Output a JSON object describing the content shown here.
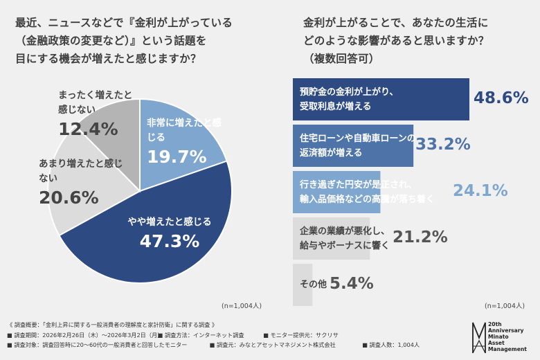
{
  "left_question": "最近、ニュースなどで『金利が上がっている\n（金融政策の変更など）』という話題を\n目にする機会が増えたと感じますか？",
  "right_question": "金利が上がることで、あなたの生活に\nどのような影響があると思いますか？\n（複数回答可）",
  "n_left": "(n=1,004人)",
  "n_right": "(n=1,004人)",
  "colors": {
    "navy": "#2d4a82",
    "mid_blue": "#4d73a8",
    "light_blue": "#7fa6cf",
    "gray_dark": "#b4b4b4",
    "gray_light": "#dcdcdc",
    "bg": "#f0f0f0"
  },
  "chart_data": [
    {
      "type": "pie",
      "title": "最近、ニュースなどで『金利が上がっている（金融政策の変更など）』という話題を目にする機会が増えたと感じますか？",
      "slices": [
        {
          "label": "非常に増えたと感じる",
          "value": 19.7,
          "display": "19.7%",
          "color": "#7fa6cf"
        },
        {
          "label": "やや増えたと感じる",
          "value": 47.3,
          "display": "47.3%",
          "color": "#2d4a82"
        },
        {
          "label": "あまり増えたと感じない",
          "value": 20.6,
          "display": "20.6%",
          "color": "#dcdcdc"
        },
        {
          "label": "まったく増えたと感じない",
          "value": 12.4,
          "display": "12.4%",
          "color": "#b4b4b4"
        }
      ],
      "start_angle_deg": 0,
      "direction": "clockwise"
    },
    {
      "type": "bar",
      "orientation": "horizontal",
      "title": "金利が上がることで、あなたの生活にどのような影響があると思いますか？（複数回答可）",
      "categories": [
        "預貯金の金利が上がり、\n受取利息が増える",
        "住宅ローンや自動車ローンの\n返済額が増える",
        "行き過ぎた円安が是正され、\n輸入品価格などの高騰が落ち着く",
        "企業の業績が悪化し、\n給与やボーナスに響く",
        "その他"
      ],
      "values": [
        48.6,
        33.2,
        24.1,
        21.2,
        5.4
      ],
      "value_labels": [
        "48.6%",
        "33.2%",
        "24.1%",
        "21.2%",
        "5.4%"
      ],
      "colors": [
        "#2d4a82",
        "#4d73a8",
        "#7fa6cf",
        "#dcdcdc",
        "#dcdcdc"
      ],
      "label_colors": [
        "#ffffff",
        "#ffffff",
        "#ffffff",
        "#444444",
        "#444444"
      ],
      "value_colors": [
        "#2d4a82",
        "#4d73a8",
        "#7fa6cf",
        "#555555",
        "#555555"
      ]
    }
  ],
  "footer": {
    "line1": "《 調査概要：「金利上昇に関する一般消費者の理解度と家計防衛」に関する調査 》",
    "period": "■ 調査期間：2026年2月26日（木）～2026年3月2日（月）",
    "method": "■ 調査方法：インターネット調査",
    "monitor": "■ モニター提供元：サクリサ",
    "target": "■ 調査対象：調査回答時に20～60代の一般消費者と回答したモニター",
    "source": "■ 調査元：みなとアセットマネジメント株式会社",
    "count": "■ 調査人数：1,004人"
  },
  "logo_text": "20th Anniversary\nMinato\nAsset\nManagement"
}
